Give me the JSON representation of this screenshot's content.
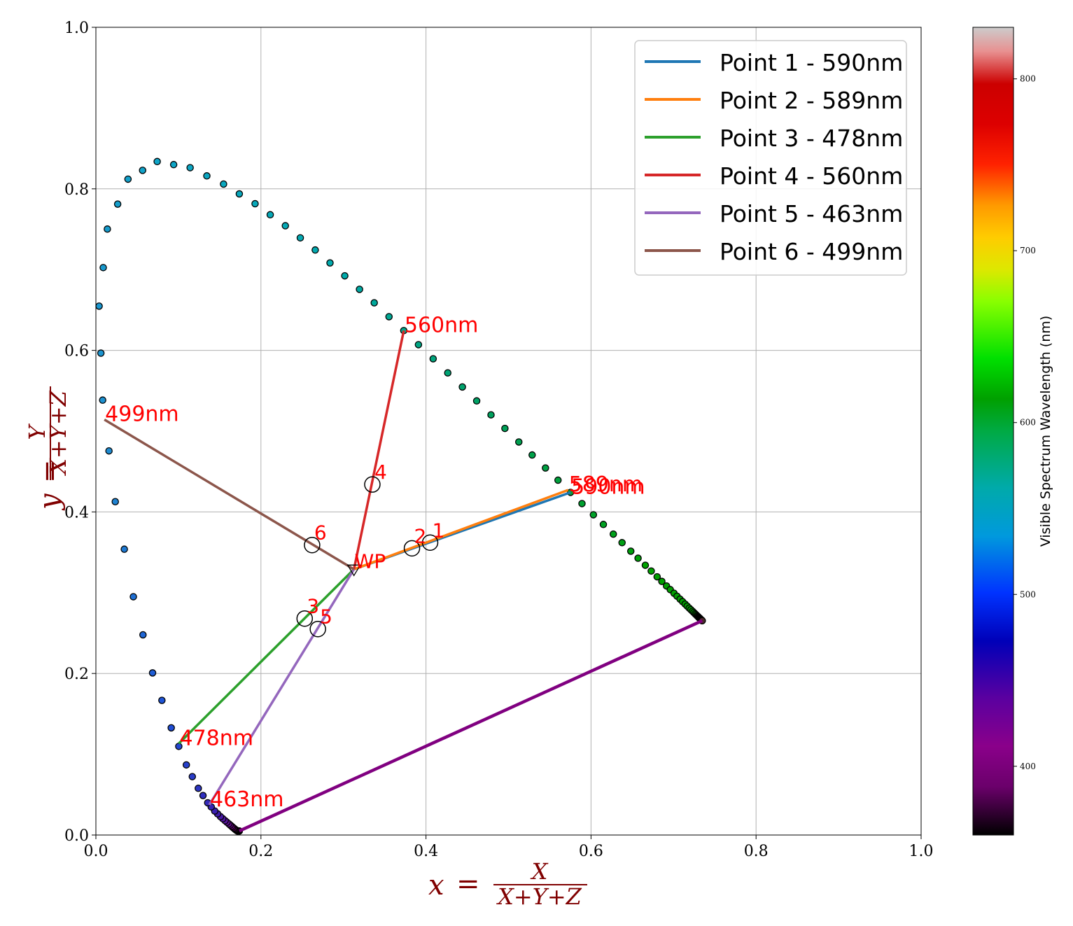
{
  "chart_data": {
    "type": "scatter",
    "xlabel": "x = X / (X+Y+Z)",
    "ylabel": "y = Y / (X+Y+Z)",
    "xlabel_parts": {
      "var": "x",
      "eq": "=",
      "num": "X",
      "den": "X+Y+Z"
    },
    "ylabel_parts": {
      "var": "y",
      "eq": "=",
      "num": "Y",
      "den": "X+Y+Z"
    },
    "xlim": [
      0,
      1.0
    ],
    "ylim": [
      0,
      1.0
    ],
    "xticks": [
      "0.0",
      "0.2",
      "0.4",
      "0.6",
      "0.8",
      "1.0"
    ],
    "yticks": [
      "0.0",
      "0.2",
      "0.4",
      "0.6",
      "0.8",
      "1.0"
    ],
    "grid": true,
    "legend_position": "top-right",
    "colorbar": {
      "label": "Visible Spectrum Wavelength (nm)",
      "range": [
        360,
        830
      ],
      "ticks": [
        "400",
        "500",
        "600",
        "700",
        "800"
      ]
    },
    "white_point": {
      "label": "WP",
      "x": 0.3127,
      "y": 0.329
    },
    "locus": [
      [
        0.1738,
        0.005
      ],
      [
        0.1733,
        0.0048
      ],
      [
        0.1726,
        0.0048
      ],
      [
        0.1721,
        0.0048
      ],
      [
        0.1714,
        0.0051
      ],
      [
        0.1703,
        0.0058
      ],
      [
        0.1689,
        0.0069
      ],
      [
        0.1669,
        0.0086
      ],
      [
        0.1644,
        0.0109
      ],
      [
        0.1611,
        0.0138
      ],
      [
        0.1566,
        0.0177
      ],
      [
        0.151,
        0.0227
      ],
      [
        0.144,
        0.0297
      ],
      [
        0.1355,
        0.0399
      ],
      [
        0.1241,
        0.0578
      ],
      [
        0.1096,
        0.0868
      ],
      [
        0.0913,
        0.1327
      ],
      [
        0.0687,
        0.2007
      ],
      [
        0.0454,
        0.295
      ],
      [
        0.0235,
        0.4127
      ],
      [
        0.0082,
        0.5384
      ],
      [
        0.0039,
        0.6548
      ],
      [
        0.0139,
        0.7502
      ],
      [
        0.0389,
        0.812
      ],
      [
        0.0743,
        0.8338
      ],
      [
        0.1142,
        0.8262
      ],
      [
        0.1547,
        0.8059
      ],
      [
        0.1929,
        0.7816
      ],
      [
        0.2296,
        0.7543
      ],
      [
        0.2658,
        0.7243
      ],
      [
        0.3016,
        0.6923
      ],
      [
        0.3373,
        0.6589
      ],
      [
        0.3731,
        0.6245
      ],
      [
        0.4087,
        0.5896
      ],
      [
        0.4441,
        0.5547
      ],
      [
        0.4788,
        0.5202
      ],
      [
        0.5125,
        0.4866
      ],
      [
        0.5448,
        0.4544
      ],
      [
        0.5752,
        0.4242
      ],
      [
        0.6029,
        0.3965
      ],
      [
        0.627,
        0.3725
      ],
      [
        0.6482,
        0.3514
      ],
      [
        0.6658,
        0.334
      ],
      [
        0.6801,
        0.3197
      ],
      [
        0.6915,
        0.3083
      ],
      [
        0.7006,
        0.2993
      ],
      [
        0.7079,
        0.292
      ],
      [
        0.714,
        0.2859
      ],
      [
        0.719,
        0.2809
      ],
      [
        0.723,
        0.277
      ],
      [
        0.726,
        0.274
      ],
      [
        0.7283,
        0.2717
      ],
      [
        0.73,
        0.27
      ],
      [
        0.7311,
        0.2689
      ],
      [
        0.732,
        0.268
      ],
      [
        0.7327,
        0.2673
      ],
      [
        0.7334,
        0.2666
      ],
      [
        0.734,
        0.266
      ],
      [
        0.7344,
        0.2656
      ],
      [
        0.7346,
        0.2654
      ],
      [
        0.7347,
        0.2653
      ]
    ],
    "series": [
      {
        "name": "Point 1 - 590nm",
        "label": "1",
        "color": "#1f77b4",
        "point": [
          0.405,
          0.362
        ],
        "end": [
          0.5752,
          0.4242
        ],
        "end_label": "590nm"
      },
      {
        "name": "Point 2 - 589nm",
        "label": "2",
        "color": "#ff7f0e",
        "point": [
          0.383,
          0.355
        ],
        "end": [
          0.5722,
          0.4271
        ],
        "end_label": "589nm"
      },
      {
        "name": "Point 3 - 478nm",
        "label": "3",
        "color": "#2ca02c",
        "point": [
          0.253,
          0.268
        ],
        "end": [
          0.1005,
          0.1133
        ],
        "end_label": "478nm"
      },
      {
        "name": "Point 4 - 560nm",
        "label": "4",
        "color": "#d62728",
        "point": [
          0.335,
          0.434
        ],
        "end": [
          0.3731,
          0.6245
        ],
        "end_label": "560nm"
      },
      {
        "name": "Point 5 - 463nm",
        "label": "5",
        "color": "#9467bd",
        "point": [
          0.269,
          0.255
        ],
        "end": [
          0.1374,
          0.0373
        ],
        "end_label": "463nm"
      },
      {
        "name": "Point 6 - 499nm",
        "label": "6",
        "color": "#8c564b",
        "point": [
          0.262,
          0.359
        ],
        "end": [
          0.0103,
          0.5143
        ],
        "end_label": "499nm"
      }
    ],
    "purple_line": {
      "color": "#800080",
      "from": [
        0.1738,
        0.005
      ],
      "to": [
        0.7347,
        0.2653
      ]
    }
  }
}
